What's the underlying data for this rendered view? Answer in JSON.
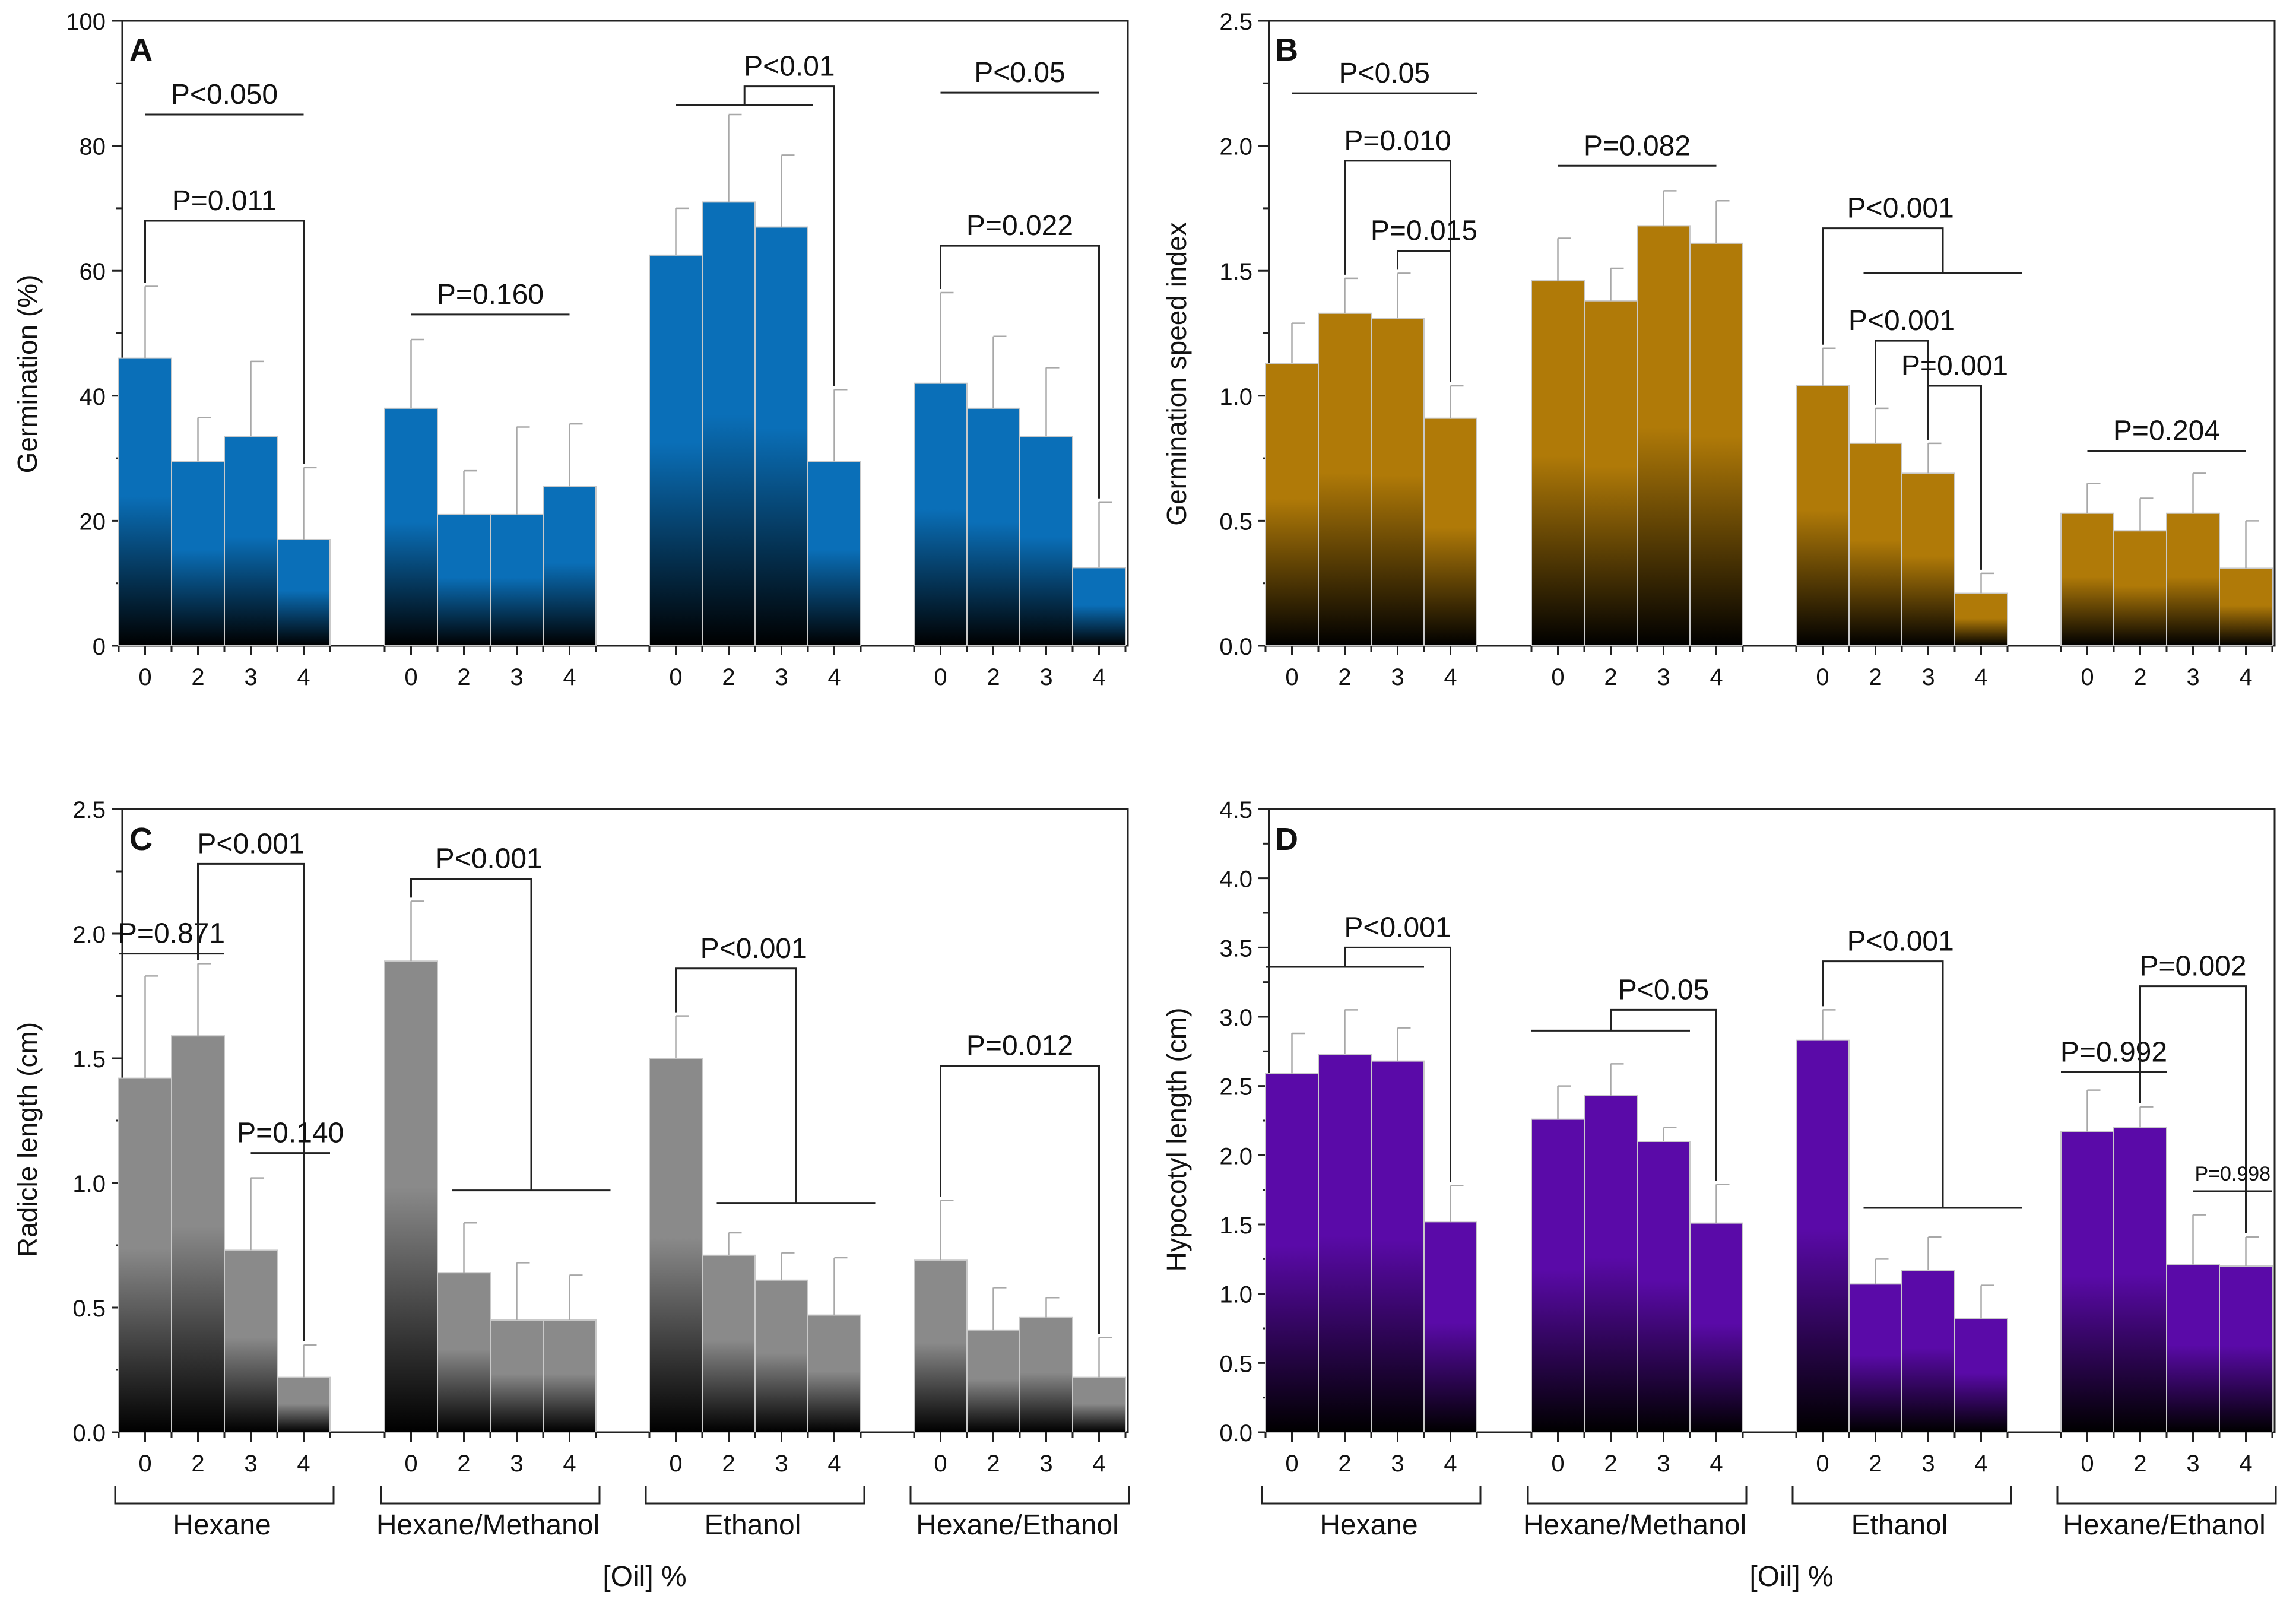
{
  "figure": {
    "x_title": "[Oil] %",
    "group_names": [
      "Hexane",
      "Hexane/Methanol",
      "Ethanol",
      "Hexane/Ethanol"
    ],
    "category_labels": [
      "0",
      "2",
      "3",
      "4"
    ]
  },
  "chart_data": [
    {
      "id": "A",
      "panel_label": "A",
      "type": "bar",
      "ylabel": "Germination (%)",
      "ylim": [
        0,
        100
      ],
      "yticks": [
        0,
        20,
        40,
        60,
        80,
        100
      ],
      "tick_decimals": 0,
      "color": "#0a6fb8",
      "groups": [
        {
          "name": "Hexane",
          "categories": [
            "0",
            "2",
            "3",
            "4"
          ],
          "values": [
            46,
            29.5,
            33.5,
            17
          ],
          "errors": [
            11.5,
            7,
            12,
            11.5
          ]
        },
        {
          "name": "Hexane/Methanol",
          "categories": [
            "0",
            "2",
            "3",
            "4"
          ],
          "values": [
            38,
            21,
            21,
            25.5
          ],
          "errors": [
            11,
            7,
            14,
            10
          ]
        },
        {
          "name": "Ethanol",
          "categories": [
            "0",
            "2",
            "3",
            "4"
          ],
          "values": [
            62.5,
            71,
            67,
            29.5
          ],
          "errors": [
            7.5,
            14,
            11.5,
            11.5
          ]
        },
        {
          "name": "Hexane/Ethanol",
          "categories": [
            "0",
            "2",
            "3",
            "4"
          ],
          "values": [
            42,
            38,
            33.5,
            12.5
          ],
          "errors": [
            14.5,
            11.5,
            11,
            10.5
          ]
        }
      ],
      "annotations": [
        {
          "text": "P<0.050",
          "group": 0,
          "kind": "line",
          "from": 0,
          "to": 3,
          "y": 85
        },
        {
          "text": "P=0.011",
          "group": 0,
          "kind": "bracket",
          "left": 0,
          "right": 3,
          "y": 68
        },
        {
          "text": "P=0.160",
          "group": 1,
          "kind": "line",
          "from": 0,
          "to": 3,
          "y": 53
        },
        {
          "text": "P<0.01",
          "group": 2,
          "kind": "split",
          "leftFrom": 0,
          "leftTo": 2.6,
          "leftY": 86.5,
          "right": 3,
          "y": 89.5
        },
        {
          "text": "P<0.05",
          "group": 3,
          "kind": "line",
          "from": 0,
          "to": 3,
          "y": 88.5
        },
        {
          "text": "P=0.022",
          "group": 3,
          "kind": "bracket",
          "left": 0,
          "right": 3,
          "y": 64
        }
      ]
    },
    {
      "id": "B",
      "panel_label": "B",
      "type": "bar",
      "ylabel": "Germination speed index",
      "ylim": [
        0,
        2.5
      ],
      "yticks": [
        0,
        0.5,
        1.0,
        1.5,
        2.0,
        2.5
      ],
      "tick_decimals": 1,
      "color": "#b07a08",
      "groups": [
        {
          "name": "Hexane",
          "categories": [
            "0",
            "2",
            "3",
            "4"
          ],
          "values": [
            1.13,
            1.33,
            1.31,
            0.91
          ],
          "errors": [
            0.16,
            0.14,
            0.18,
            0.13
          ]
        },
        {
          "name": "Hexane/Methanol",
          "categories": [
            "0",
            "2",
            "3",
            "4"
          ],
          "values": [
            1.46,
            1.38,
            1.68,
            1.61
          ],
          "errors": [
            0.17,
            0.13,
            0.14,
            0.17
          ]
        },
        {
          "name": "Ethanol",
          "categories": [
            "0",
            "2",
            "3",
            "4"
          ],
          "values": [
            1.04,
            0.81,
            0.69,
            0.21
          ],
          "errors": [
            0.15,
            0.14,
            0.12,
            0.08
          ]
        },
        {
          "name": "Hexane/Ethanol",
          "categories": [
            "0",
            "2",
            "3",
            "4"
          ],
          "values": [
            0.53,
            0.46,
            0.53,
            0.31
          ],
          "errors": [
            0.12,
            0.13,
            0.16,
            0.19
          ]
        }
      ],
      "annotations": [
        {
          "text": "P<0.05",
          "group": 0,
          "kind": "line",
          "from": 0,
          "to": 3.5,
          "y": 2.21
        },
        {
          "text": "P=0.010",
          "group": 0,
          "kind": "bracket",
          "left": 1,
          "right": 3,
          "y": 1.94
        },
        {
          "text": "P=0.015",
          "group": 0,
          "kind": "bracket",
          "left": 2,
          "right": 3,
          "y": 1.58
        },
        {
          "text": "P=0.082",
          "group": 1,
          "kind": "line",
          "from": 0,
          "to": 3,
          "y": 1.92
        },
        {
          "text": "P<0.001",
          "group": 2,
          "kind": "split2",
          "left": 0,
          "rightFrom": 1,
          "rightTo": 4,
          "rightY": 1.49,
          "y": 1.67
        },
        {
          "text": "P<0.001",
          "group": 2,
          "kind": "bracket",
          "left": 1,
          "right": 2,
          "y": 1.22
        },
        {
          "text": "P=0.001",
          "group": 2,
          "kind": "bracket",
          "left": 2,
          "right": 3,
          "y": 1.04
        },
        {
          "text": "P=0.204",
          "group": 3,
          "kind": "line",
          "from": 0,
          "to": 3,
          "y": 0.78
        }
      ]
    },
    {
      "id": "C",
      "panel_label": "C",
      "type": "bar",
      "ylabel": "Radicle length (cm)",
      "ylim": [
        0,
        2.5
      ],
      "yticks": [
        0,
        0.5,
        1.0,
        1.5,
        2.0,
        2.5
      ],
      "tick_decimals": 1,
      "color": "#8a8a8a",
      "groups": [
        {
          "name": "Hexane",
          "categories": [
            "0",
            "2",
            "3",
            "4"
          ],
          "values": [
            1.42,
            1.59,
            0.73,
            0.22
          ],
          "errors": [
            0.41,
            0.29,
            0.29,
            0.13
          ]
        },
        {
          "name": "Hexane/Methanol",
          "categories": [
            "0",
            "2",
            "3",
            "4"
          ],
          "values": [
            1.89,
            0.64,
            0.45,
            0.45
          ],
          "errors": [
            0.24,
            0.2,
            0.23,
            0.18
          ]
        },
        {
          "name": "Ethanol",
          "categories": [
            "0",
            "2",
            "3",
            "4"
          ],
          "values": [
            1.5,
            0.71,
            0.61,
            0.47
          ],
          "errors": [
            0.17,
            0.09,
            0.11,
            0.23
          ]
        },
        {
          "name": "Hexane/Ethanol",
          "categories": [
            "0",
            "2",
            "3",
            "4"
          ],
          "values": [
            0.69,
            0.41,
            0.46,
            0.22
          ],
          "errors": [
            0.24,
            0.17,
            0.08,
            0.16
          ]
        }
      ],
      "annotations": [
        {
          "text": "P=0.871",
          "group": 0,
          "kind": "line",
          "from": -0.5,
          "to": 1.5,
          "y": 1.92
        },
        {
          "text": "P<0.001",
          "group": 0,
          "kind": "bracket",
          "left": 1,
          "right": 3,
          "y": 2.28
        },
        {
          "text": "P=0.140",
          "group": 0,
          "kind": "line",
          "from": 2,
          "to": 3.5,
          "y": 1.12
        },
        {
          "text": "P<0.001",
          "group": 1,
          "kind": "split2",
          "left": 0,
          "rightFrom": 1,
          "rightTo": 4,
          "rightY": 0.97,
          "y": 2.22
        },
        {
          "text": "P<0.001",
          "group": 2,
          "kind": "split2",
          "left": 0,
          "rightFrom": 1,
          "rightTo": 4,
          "rightY": 0.92,
          "y": 1.86
        },
        {
          "text": "P=0.012",
          "group": 3,
          "kind": "bracket",
          "left": 0,
          "right": 3,
          "y": 1.47
        }
      ]
    },
    {
      "id": "D",
      "panel_label": "D",
      "type": "bar",
      "ylabel": "Hypocotyl length (cm)",
      "ylim": [
        0,
        4.5
      ],
      "yticks": [
        0,
        0.5,
        1.0,
        1.5,
        2.0,
        2.5,
        3.0,
        3.5,
        4.0,
        4.5
      ],
      "tick_decimals": 1,
      "color": "#5a0aa8",
      "groups": [
        {
          "name": "Hexane",
          "categories": [
            "0",
            "2",
            "3",
            "4"
          ],
          "values": [
            2.59,
            2.73,
            2.68,
            1.52
          ],
          "errors": [
            0.29,
            0.32,
            0.24,
            0.26
          ]
        },
        {
          "name": "Hexane/Methanol",
          "categories": [
            "0",
            "2",
            "3",
            "4"
          ],
          "values": [
            2.26,
            2.43,
            2.1,
            1.51
          ],
          "errors": [
            0.24,
            0.23,
            0.1,
            0.28
          ]
        },
        {
          "name": "Ethanol",
          "categories": [
            "0",
            "2",
            "3",
            "4"
          ],
          "values": [
            2.83,
            1.07,
            1.17,
            0.82
          ],
          "errors": [
            0.22,
            0.18,
            0.24,
            0.24
          ]
        },
        {
          "name": "Hexane/Ethanol",
          "categories": [
            "0",
            "2",
            "3",
            "4"
          ],
          "values": [
            2.17,
            2.2,
            1.21,
            1.2
          ],
          "errors": [
            0.3,
            0.15,
            0.36,
            0.21
          ]
        }
      ],
      "annotations": [
        {
          "text": "P<0.001",
          "group": 0,
          "kind": "split",
          "leftFrom": -0.5,
          "leftTo": 2.5,
          "leftY": 3.36,
          "right": 3,
          "y": 3.5
        },
        {
          "text": "P<0.05",
          "group": 1,
          "kind": "split",
          "leftFrom": -0.5,
          "leftTo": 2.5,
          "leftY": 2.9,
          "right": 3,
          "y": 3.05
        },
        {
          "text": "P<0.001",
          "group": 2,
          "kind": "split2",
          "left": 0,
          "rightFrom": 1,
          "rightTo": 4,
          "rightY": 1.62,
          "y": 3.4
        },
        {
          "text": "P=0.992",
          "group": 3,
          "kind": "line",
          "from": -0.5,
          "to": 1.5,
          "y": 2.6
        },
        {
          "text": "P=0.002",
          "group": 3,
          "kind": "bracket",
          "left": 1,
          "right": 3,
          "y": 3.22
        },
        {
          "text": "P=0.998",
          "group": 3,
          "kind": "line",
          "from": 2,
          "to": 3.5,
          "y": 1.74,
          "small": true
        }
      ]
    }
  ]
}
